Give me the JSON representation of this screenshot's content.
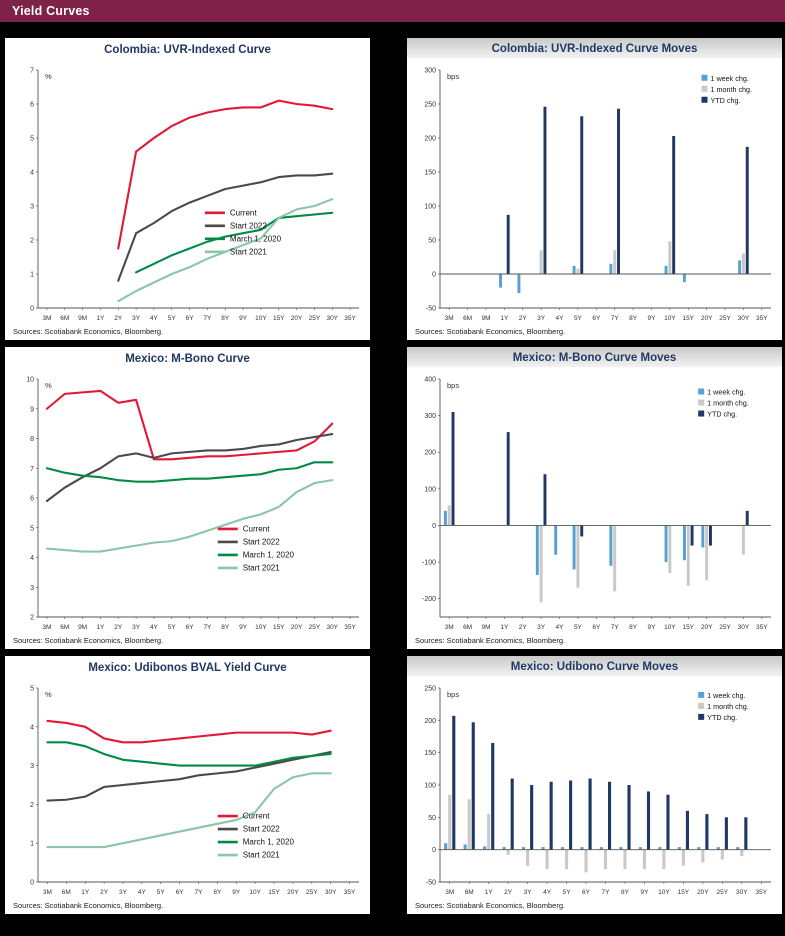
{
  "page": {
    "title": "Yield Curves"
  },
  "colors": {
    "header_bg": "#7e2248",
    "title_text": "#1f3864",
    "axis": "#555555",
    "current": "#e31837",
    "start_2022": "#4a4a4a",
    "march_2020": "#008a45",
    "start_2021": "#8cc5a8",
    "week": "#56a0d3",
    "month": "#c9c9c9",
    "ytd": "#1f3864"
  },
  "charts": [
    {
      "title": "Colombia: UVR-Indexed Curve",
      "sources": "Sources: Scotiabank Economics, Bloomberg.",
      "chart_data": {
        "type": "line",
        "unit": "%",
        "ylim": [
          0,
          7
        ],
        "yticks": [
          0,
          1,
          2,
          3,
          4,
          5,
          6,
          7
        ],
        "categories": [
          "3M",
          "6M",
          "9M",
          "1Y",
          "2Y",
          "3Y",
          "4Y",
          "5Y",
          "6Y",
          "7Y",
          "8Y",
          "9Y",
          "10Y",
          "15Y",
          "20Y",
          "25Y",
          "30Y",
          "35Y"
        ],
        "legend_pos": {
          "x": 0.52,
          "y": 0.6
        },
        "series": [
          {
            "name": "Current",
            "color": "current",
            "values": [
              null,
              null,
              null,
              null,
              1.75,
              4.6,
              5.0,
              5.35,
              5.6,
              5.75,
              5.85,
              5.9,
              5.9,
              6.1,
              6.0,
              5.95,
              5.85,
              null
            ]
          },
          {
            "name": "Start 2022",
            "color": "start_2022",
            "values": [
              null,
              null,
              null,
              null,
              0.8,
              2.2,
              2.5,
              2.85,
              3.1,
              3.3,
              3.5,
              3.6,
              3.7,
              3.85,
              3.9,
              3.9,
              3.95,
              null
            ]
          },
          {
            "name": "March 1, 2020",
            "color": "march_2020",
            "values": [
              null,
              null,
              null,
              null,
              null,
              1.05,
              1.3,
              1.55,
              1.75,
              1.95,
              2.1,
              2.2,
              2.3,
              2.65,
              2.7,
              2.75,
              2.8,
              null
            ]
          },
          {
            "name": "Start 2021",
            "color": "start_2021",
            "values": [
              null,
              null,
              null,
              null,
              0.2,
              0.5,
              0.75,
              1.0,
              1.2,
              1.45,
              1.65,
              1.85,
              2.05,
              2.65,
              2.9,
              3.0,
              3.2,
              null
            ]
          }
        ]
      }
    },
    {
      "title": "Colombia: UVR-Indexed Curve Moves",
      "sources": "Sources: Scotiabank Economics, Bloomberg.",
      "chart_data": {
        "type": "bar",
        "unit": "bps",
        "ylim": [
          -50,
          300
        ],
        "yticks": [
          -50,
          0,
          50,
          100,
          150,
          200,
          250,
          300
        ],
        "categories": [
          "3M",
          "6M",
          "9M",
          "1Y",
          "2Y",
          "3Y",
          "4Y",
          "5Y",
          "6Y",
          "7Y",
          "8Y",
          "9Y",
          "10Y",
          "15Y",
          "20Y",
          "25Y",
          "30Y",
          "35Y"
        ],
        "legend_pos": {
          "x": 0.79,
          "y": 0.02
        },
        "series": [
          {
            "name": "1 week chg.",
            "color": "week",
            "values": [
              0,
              0,
              0,
              -20,
              -28,
              0,
              0,
              12,
              0,
              15,
              0,
              0,
              12,
              -12,
              0,
              0,
              20,
              0
            ]
          },
          {
            "name": "1 month chg.",
            "color": "month",
            "values": [
              0,
              0,
              0,
              0,
              0,
              35,
              0,
              8,
              0,
              35,
              0,
              0,
              48,
              0,
              0,
              0,
              30,
              0
            ]
          },
          {
            "name": "YTD chg.",
            "color": "ytd",
            "values": [
              0,
              0,
              0,
              87,
              0,
              246,
              0,
              232,
              0,
              243,
              0,
              0,
              203,
              0,
              0,
              0,
              187,
              0
            ]
          }
        ]
      }
    },
    {
      "title": "Mexico: M-Bono Curve",
      "sources": "Sources: Scotiabank Economics, Bloomberg.",
      "chart_data": {
        "type": "line",
        "unit": "%",
        "ylim": [
          2,
          10
        ],
        "yticks": [
          2,
          3,
          4,
          5,
          6,
          7,
          8,
          9,
          10
        ],
        "categories": [
          "3M",
          "6M",
          "9M",
          "1Y",
          "2Y",
          "3Y",
          "4Y",
          "5Y",
          "6Y",
          "7Y",
          "8Y",
          "9Y",
          "10Y",
          "15Y",
          "20Y",
          "25Y",
          "30Y",
          "35Y"
        ],
        "legend_pos": {
          "x": 0.56,
          "y": 0.63
        },
        "series": [
          {
            "name": "Current",
            "color": "current",
            "values": [
              9.0,
              9.5,
              9.55,
              9.6,
              9.2,
              9.3,
              7.3,
              7.3,
              7.35,
              7.4,
              7.4,
              7.45,
              7.5,
              7.55,
              7.6,
              7.9,
              8.5,
              null
            ]
          },
          {
            "name": "Start 2022",
            "color": "start_2022",
            "values": [
              5.9,
              6.35,
              6.7,
              7.0,
              7.4,
              7.5,
              7.35,
              7.5,
              7.55,
              7.6,
              7.6,
              7.65,
              7.75,
              7.8,
              7.95,
              8.05,
              8.15,
              null
            ]
          },
          {
            "name": "March 1, 2020",
            "color": "march_2020",
            "values": [
              7.0,
              6.85,
              6.75,
              6.7,
              6.6,
              6.55,
              6.55,
              6.6,
              6.65,
              6.65,
              6.7,
              6.75,
              6.8,
              6.95,
              7.0,
              7.2,
              7.2,
              null
            ]
          },
          {
            "name": "Start 2021",
            "color": "start_2021",
            "values": [
              4.3,
              4.25,
              4.2,
              4.2,
              4.3,
              4.4,
              4.5,
              4.55,
              4.7,
              4.9,
              5.1,
              5.3,
              5.45,
              5.7,
              6.2,
              6.5,
              6.6,
              null
            ]
          }
        ]
      }
    },
    {
      "title": "Mexico: M-Bono Curve Moves",
      "sources": "Sources: Scotiabank Economics, Bloomberg.",
      "chart_data": {
        "type": "bar",
        "unit": "bps",
        "ylim": [
          -250,
          400
        ],
        "yticks": [
          -200,
          -100,
          0,
          100,
          200,
          300,
          400
        ],
        "categories": [
          "3M",
          "6M",
          "9M",
          "1Y",
          "2Y",
          "3Y",
          "4Y",
          "5Y",
          "6Y",
          "7Y",
          "8Y",
          "9Y",
          "10Y",
          "15Y",
          "20Y",
          "25Y",
          "30Y",
          "35Y"
        ],
        "legend_pos": {
          "x": 0.78,
          "y": 0.04
        },
        "series": [
          {
            "name": "1 week chg.",
            "color": "week",
            "values": [
              40,
              0,
              0,
              0,
              0,
              -135,
              -80,
              -120,
              0,
              -110,
              0,
              0,
              -100,
              -95,
              -60,
              0,
              0,
              0
            ]
          },
          {
            "name": "1 month chg.",
            "color": "month",
            "values": [
              55,
              0,
              0,
              0,
              0,
              -210,
              0,
              -170,
              0,
              -180,
              0,
              0,
              -130,
              -165,
              -150,
              0,
              -80,
              0
            ]
          },
          {
            "name": "YTD chg.",
            "color": "ytd",
            "values": [
              310,
              0,
              0,
              255,
              0,
              140,
              0,
              -30,
              0,
              0,
              0,
              0,
              0,
              -55,
              -55,
              0,
              40,
              0
            ]
          }
        ]
      }
    },
    {
      "title": "Mexico: Udibonos BVAL Yield Curve",
      "sources": "Sources: Scotiabank Economics, Bloomberg.",
      "chart_data": {
        "type": "line",
        "unit": "%",
        "ylim": [
          0,
          5
        ],
        "yticks": [
          0,
          1,
          2,
          3,
          4,
          5
        ],
        "categories": [
          "3M",
          "6M",
          "1Y",
          "2Y",
          "3Y",
          "4Y",
          "5Y",
          "6Y",
          "7Y",
          "8Y",
          "9Y",
          "10Y",
          "15Y",
          "20Y",
          "25Y",
          "30Y",
          "35Y"
        ],
        "legend_pos": {
          "x": 0.56,
          "y": 0.66
        },
        "series": [
          {
            "name": "Current",
            "color": "current",
            "values": [
              4.15,
              4.1,
              4.0,
              3.7,
              3.6,
              3.6,
              3.65,
              3.7,
              3.75,
              3.8,
              3.85,
              3.85,
              3.85,
              3.85,
              3.8,
              3.9,
              null
            ]
          },
          {
            "name": "Start 2022",
            "color": "start_2022",
            "values": [
              2.1,
              2.12,
              2.2,
              2.45,
              2.5,
              2.55,
              2.6,
              2.65,
              2.75,
              2.8,
              2.85,
              2.95,
              3.05,
              3.15,
              3.25,
              3.35,
              null
            ]
          },
          {
            "name": "March 1, 2020",
            "color": "march_2020",
            "values": [
              3.6,
              3.6,
              3.5,
              3.3,
              3.15,
              3.1,
              3.05,
              3.0,
              3.0,
              3.0,
              3.0,
              3.0,
              3.1,
              3.2,
              3.25,
              3.3,
              null
            ]
          },
          {
            "name": "Start 2021",
            "color": "start_2021",
            "values": [
              0.9,
              0.9,
              0.9,
              0.9,
              1.0,
              1.1,
              1.2,
              1.3,
              1.4,
              1.5,
              1.6,
              1.8,
              2.4,
              2.7,
              2.8,
              2.8,
              null
            ]
          }
        ]
      }
    },
    {
      "title": "Mexico: Udibono Curve Moves",
      "sources": "Sources: Scotiabank Economics, Bloomberg.",
      "chart_data": {
        "type": "bar",
        "unit": "bps",
        "ylim": [
          -50,
          250
        ],
        "yticks": [
          -50,
          0,
          50,
          100,
          150,
          200,
          250
        ],
        "categories": [
          "3M",
          "6M",
          "1Y",
          "2Y",
          "3Y",
          "4Y",
          "5Y",
          "6Y",
          "7Y",
          "8Y",
          "9Y",
          "10Y",
          "15Y",
          "20Y",
          "25Y",
          "30Y",
          "35Y"
        ],
        "legend_pos": {
          "x": 0.78,
          "y": 0.02
        },
        "series": [
          {
            "name": "1 week chg.",
            "color": "week",
            "values": [
              10,
              8,
              5,
              4,
              4,
              4,
              4,
              4,
              4,
              4,
              4,
              4,
              4,
              4,
              4,
              4,
              0
            ]
          },
          {
            "name": "1 month chg.",
            "color": "month",
            "values": [
              85,
              78,
              55,
              -8,
              -25,
              -30,
              -30,
              -35,
              -30,
              -30,
              -30,
              -30,
              -25,
              -20,
              -15,
              -10,
              0
            ]
          },
          {
            "name": "YTD chg.",
            "color": "ytd",
            "values": [
              207,
              197,
              165,
              110,
              100,
              105,
              107,
              110,
              105,
              100,
              90,
              85,
              60,
              55,
              50,
              50,
              0
            ]
          }
        ]
      }
    }
  ]
}
